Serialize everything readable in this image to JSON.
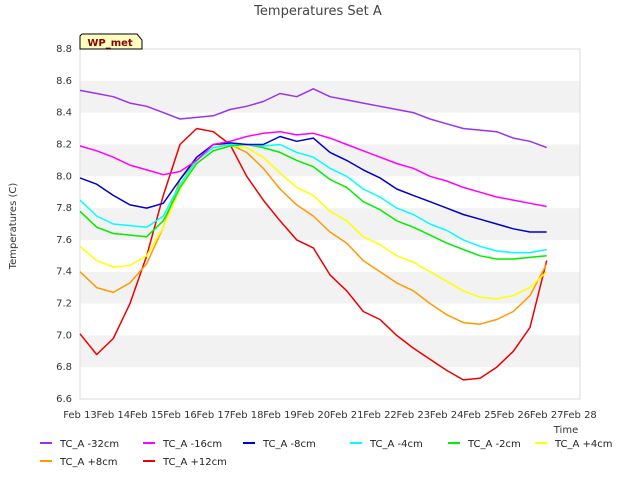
{
  "chart_data": {
    "type": "line",
    "title": "Temperatures Set A",
    "xlabel": "Time",
    "ylabel": "Temperatures (C)",
    "badge": "WP_met",
    "xlim": [
      13,
      28
    ],
    "ylim": [
      6.6,
      8.8
    ],
    "yticks": [
      "6.6",
      "6.8",
      "7.0",
      "7.2",
      "7.4",
      "7.6",
      "7.8",
      "8.0",
      "8.2",
      "8.4",
      "8.6",
      "8.8"
    ],
    "xticks": [
      "Feb 13",
      "Feb 14",
      "Feb 15",
      "Feb 16",
      "Feb 17",
      "Feb 18",
      "Feb 19",
      "Feb 20",
      "Feb 21",
      "Feb 22",
      "Feb 23",
      "Feb 24",
      "Feb 25",
      "Feb 26",
      "Feb 27",
      "Feb 28"
    ],
    "grid": "horizontal bands",
    "legend_position": "bottom",
    "x": [
      13.0,
      13.5,
      14.0,
      14.5,
      15.0,
      15.5,
      16.0,
      16.5,
      17.0,
      17.5,
      18.0,
      18.5,
      19.0,
      19.5,
      20.0,
      20.5,
      21.0,
      21.5,
      22.0,
      22.5,
      23.0,
      23.5,
      24.0,
      24.5,
      25.0,
      25.5,
      26.0,
      26.5,
      27.0
    ],
    "series": [
      {
        "name": "TC_A -32cm",
        "color": "#9933ee",
        "values": [
          8.54,
          8.52,
          8.5,
          8.46,
          8.44,
          8.4,
          8.36,
          8.37,
          8.38,
          8.42,
          8.44,
          8.47,
          8.52,
          8.5,
          8.55,
          8.5,
          8.48,
          8.46,
          8.44,
          8.42,
          8.4,
          8.36,
          8.33,
          8.3,
          8.29,
          8.28,
          8.24,
          8.22,
          8.18
        ]
      },
      {
        "name": "TC_A -16cm",
        "color": "#ff00ff",
        "values": [
          8.19,
          8.16,
          8.12,
          8.07,
          8.04,
          8.01,
          8.03,
          8.1,
          8.2,
          8.22,
          8.25,
          8.27,
          8.28,
          8.26,
          8.27,
          8.24,
          8.2,
          8.16,
          8.12,
          8.08,
          8.05,
          8.0,
          7.97,
          7.93,
          7.9,
          7.87,
          7.85,
          7.83,
          7.81
        ]
      },
      {
        "name": "TC_A -8cm",
        "color": "#0000cc",
        "values": [
          7.99,
          7.95,
          7.88,
          7.82,
          7.8,
          7.83,
          7.98,
          8.12,
          8.2,
          8.21,
          8.2,
          8.2,
          8.25,
          8.22,
          8.24,
          8.15,
          8.1,
          8.04,
          7.99,
          7.92,
          7.88,
          7.84,
          7.8,
          7.76,
          7.73,
          7.7,
          7.67,
          7.65,
          7.65
        ]
      },
      {
        "name": "TC_A -4cm",
        "color": "#00ffff",
        "values": [
          7.85,
          7.75,
          7.7,
          7.69,
          7.68,
          7.75,
          7.95,
          8.1,
          8.18,
          8.2,
          8.2,
          8.19,
          8.2,
          8.15,
          8.12,
          8.05,
          8.0,
          7.92,
          7.87,
          7.8,
          7.76,
          7.7,
          7.66,
          7.6,
          7.56,
          7.53,
          7.52,
          7.52,
          7.54
        ]
      },
      {
        "name": "TC_A -2cm",
        "color": "#00ee00",
        "values": [
          7.78,
          7.68,
          7.64,
          7.63,
          7.62,
          7.72,
          7.93,
          8.08,
          8.16,
          8.19,
          8.2,
          8.18,
          8.15,
          8.1,
          8.06,
          7.98,
          7.93,
          7.84,
          7.79,
          7.72,
          7.68,
          7.63,
          7.58,
          7.54,
          7.5,
          7.48,
          7.48,
          7.49,
          7.5
        ]
      },
      {
        "name": "TC_A +4cm",
        "color": "#ffff00",
        "values": [
          7.56,
          7.47,
          7.43,
          7.44,
          7.5,
          7.68,
          7.92,
          8.08,
          8.16,
          8.19,
          8.18,
          8.12,
          8.02,
          7.93,
          7.88,
          7.78,
          7.72,
          7.62,
          7.57,
          7.5,
          7.46,
          7.4,
          7.34,
          7.28,
          7.24,
          7.23,
          7.25,
          7.3,
          7.4
        ]
      },
      {
        "name": "TC_A +8cm",
        "color": "#ff9900",
        "values": [
          7.4,
          7.3,
          7.27,
          7.33,
          7.45,
          7.68,
          7.98,
          8.1,
          8.2,
          8.2,
          8.15,
          8.05,
          7.92,
          7.82,
          7.75,
          7.65,
          7.58,
          7.47,
          7.4,
          7.33,
          7.28,
          7.2,
          7.13,
          7.08,
          7.07,
          7.1,
          7.15,
          7.25,
          7.45
        ]
      },
      {
        "name": "TC_A +12cm",
        "color": "#ee0000",
        "values": [
          7.01,
          6.88,
          6.98,
          7.2,
          7.5,
          7.88,
          8.2,
          8.3,
          8.28,
          8.2,
          8.0,
          7.85,
          7.72,
          7.6,
          7.55,
          7.38,
          7.28,
          7.15,
          7.1,
          7.0,
          6.92,
          6.85,
          6.78,
          6.72,
          6.73,
          6.8,
          6.9,
          7.05,
          7.47
        ]
      }
    ]
  }
}
